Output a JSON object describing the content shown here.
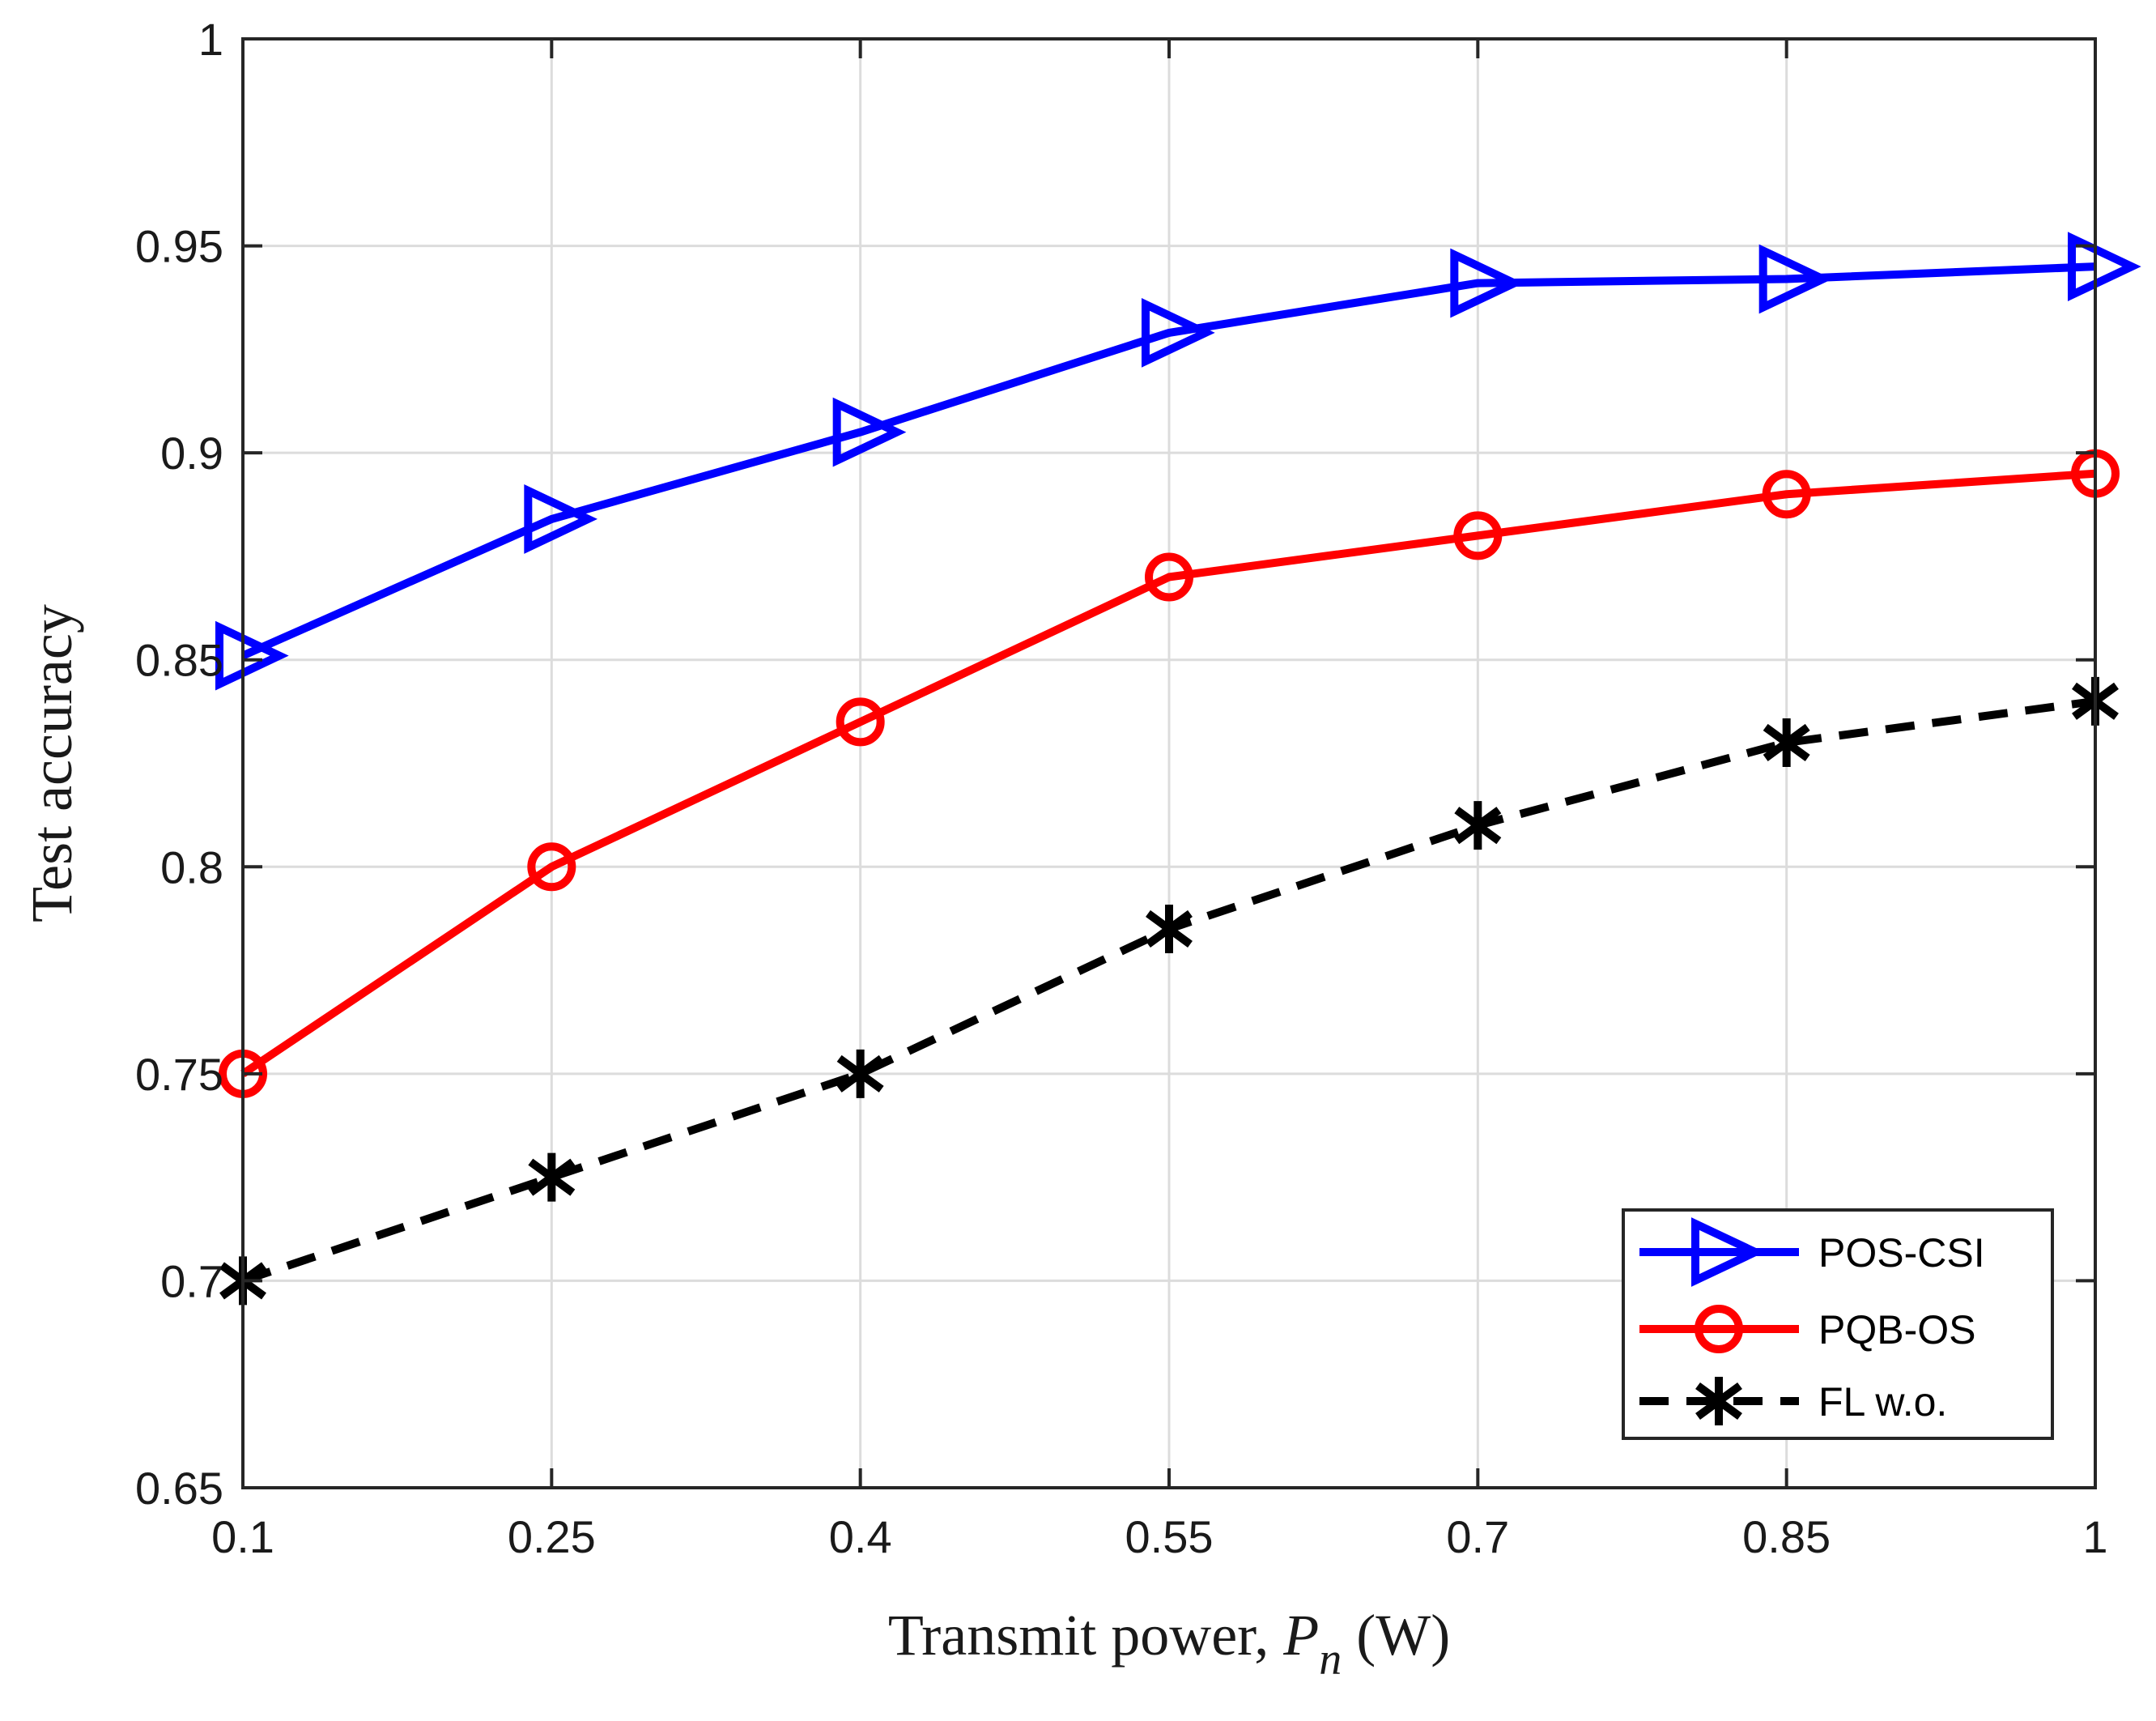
{
  "chart_data": {
    "type": "line",
    "title": "",
    "xlabel": "Transmit power, ",
    "xlabel_var": "P",
    "xlabel_sub": "n",
    "xlabel_unit": " (W)",
    "ylabel": "Test accuracy",
    "x": [
      0.1,
      0.25,
      0.4,
      0.55,
      0.7,
      0.85,
      1
    ],
    "xlim": [
      0.1,
      1
    ],
    "ylim": [
      0.65,
      1
    ],
    "xticks": [
      0.1,
      0.25,
      0.4,
      0.55,
      0.7,
      0.85,
      1
    ],
    "xtick_labels": [
      "0.1",
      "0.25",
      "0.4",
      "0.55",
      "0.7",
      "0.85",
      "1"
    ],
    "yticks": [
      0.65,
      0.7,
      0.75,
      0.8,
      0.85,
      0.9,
      0.95,
      1
    ],
    "ytick_labels": [
      "0.65",
      "0.7",
      "0.75",
      "0.8",
      "0.85",
      "0.9",
      "0.95",
      "1"
    ],
    "grid": true,
    "legend_position": "bottom-right",
    "series": [
      {
        "name": "POS-CSI",
        "color": "#0000ff",
        "marker": "triangle-right",
        "line": "solid",
        "values": [
          0.851,
          0.884,
          0.905,
          0.929,
          0.941,
          0.942,
          0.945
        ]
      },
      {
        "name": "PQB-OS",
        "color": "#ff0000",
        "marker": "circle",
        "line": "solid",
        "values": [
          0.75,
          0.8,
          0.835,
          0.87,
          0.88,
          0.89,
          0.895
        ]
      },
      {
        "name": "FL w.o.",
        "color": "#000000",
        "marker": "asterisk",
        "line": "dashed",
        "values": [
          0.7,
          0.725,
          0.75,
          0.785,
          0.81,
          0.83,
          0.84
        ]
      }
    ]
  }
}
